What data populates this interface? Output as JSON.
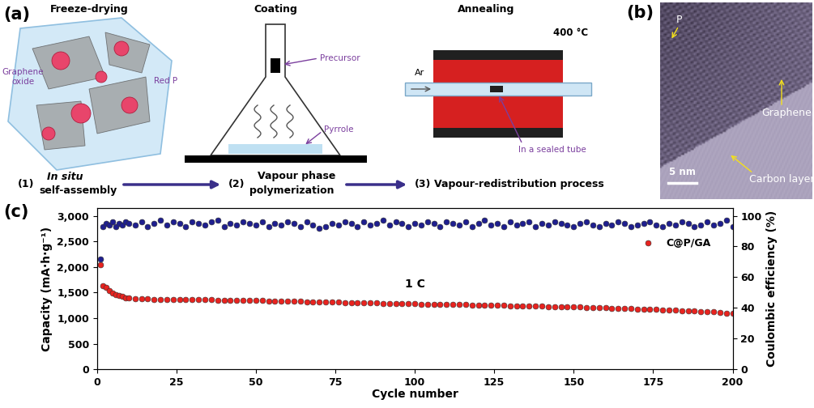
{
  "scheme": {
    "label": "(a)",
    "steps": [
      {
        "title": "Freeze-drying",
        "number": "(1)",
        "caption": [
          "In situ",
          "self-assembly"
        ],
        "callouts": [
          "Graphene\noxide",
          "Red P"
        ]
      },
      {
        "title": "Coating",
        "number": "(2)",
        "caption": [
          "Vapour phase",
          "polymerization"
        ],
        "callouts": [
          "Precursor",
          "Pyrrole"
        ]
      },
      {
        "title": "Annealing",
        "number": "(3)",
        "caption": [
          "Vapour-redistribution process"
        ],
        "callouts": [
          "400 °C",
          "Ar",
          "In a sealed tube"
        ]
      }
    ]
  },
  "tem_image": {
    "label": "(b)",
    "callouts": [
      "P",
      "Graphene",
      "Carbon layer"
    ],
    "scale_bar": "5 nm"
  },
  "chart_data": {
    "type": "scatter",
    "label": "(c)",
    "x_label": "Cycle number",
    "y_label": "Capacity (mA·h·g⁻¹)",
    "y2_label": "Coulombic efficiency (%)",
    "x": [
      1,
      2,
      3,
      4,
      5,
      6,
      7,
      8,
      9,
      10,
      12,
      14,
      16,
      18,
      20,
      22,
      24,
      26,
      28,
      30,
      32,
      34,
      36,
      38,
      40,
      42,
      44,
      46,
      48,
      50,
      52,
      54,
      56,
      58,
      60,
      62,
      64,
      66,
      68,
      70,
      72,
      74,
      76,
      78,
      80,
      82,
      84,
      86,
      88,
      90,
      92,
      94,
      96,
      98,
      100,
      102,
      104,
      106,
      108,
      110,
      112,
      114,
      116,
      118,
      120,
      122,
      124,
      126,
      128,
      130,
      132,
      134,
      136,
      138,
      140,
      142,
      144,
      146,
      148,
      150,
      152,
      154,
      156,
      158,
      160,
      162,
      164,
      166,
      168,
      170,
      172,
      174,
      176,
      178,
      180,
      182,
      184,
      186,
      188,
      190,
      192,
      194,
      196,
      198,
      200
    ],
    "series": [
      {
        "name": "C@P/GA",
        "color": "#e8231f",
        "marker": "o",
        "values": [
          2050,
          1630,
          1600,
          1540,
          1490,
          1460,
          1440,
          1420,
          1400,
          1390,
          1380,
          1375,
          1375,
          1370,
          1370,
          1365,
          1365,
          1365,
          1360,
          1360,
          1360,
          1355,
          1355,
          1350,
          1350,
          1350,
          1345,
          1345,
          1340,
          1340,
          1340,
          1335,
          1335,
          1330,
          1330,
          1325,
          1325,
          1320,
          1320,
          1315,
          1315,
          1310,
          1310,
          1305,
          1305,
          1300,
          1300,
          1295,
          1295,
          1290,
          1290,
          1285,
          1285,
          1280,
          1280,
          1275,
          1275,
          1270,
          1270,
          1265,
          1265,
          1260,
          1260,
          1255,
          1255,
          1250,
          1250,
          1245,
          1245,
          1240,
          1240,
          1235,
          1235,
          1230,
          1230,
          1225,
          1225,
          1220,
          1220,
          1215,
          1215,
          1210,
          1205,
          1200,
          1200,
          1195,
          1190,
          1185,
          1185,
          1180,
          1175,
          1170,
          1165,
          1160,
          1155,
          1150,
          1145,
          1140,
          1135,
          1130,
          1125,
          1120,
          1110,
          1100,
          1090
        ]
      },
      {
        "color": "#1f1f8f",
        "marker": "o",
        "axis": "y2",
        "values": [
          72,
          93,
          95,
          94,
          96,
          93,
          95,
          94,
          96,
          95,
          94,
          96,
          93,
          95,
          97,
          94,
          96,
          95,
          93,
          96,
          95,
          94,
          96,
          97,
          93,
          95,
          94,
          96,
          95,
          94,
          96,
          93,
          95,
          94,
          96,
          95,
          93,
          96,
          94,
          92,
          93,
          95,
          94,
          96,
          95,
          93,
          96,
          94,
          95,
          97,
          94,
          96,
          95,
          93,
          95,
          94,
          96,
          95,
          93,
          96,
          95,
          94,
          96,
          93,
          95,
          97,
          94,
          95,
          93,
          96,
          94,
          95,
          96,
          93,
          95,
          94,
          96,
          95,
          94,
          93,
          95,
          96,
          94,
          93,
          95,
          94,
          96,
          95,
          93,
          94,
          95,
          96,
          94,
          93,
          95,
          94,
          96,
          95,
          93,
          94,
          96,
          94,
          95,
          97,
          93
        ]
      }
    ],
    "xlim": [
      0,
      200
    ],
    "xticks": [
      0,
      25,
      50,
      75,
      100,
      125,
      150,
      175,
      200
    ],
    "ylim": [
      0,
      3150
    ],
    "yticks": [
      0,
      500,
      {
        "value": 1000,
        "label": "1,000"
      },
      {
        "value": 1500,
        "label": "1,500"
      },
      {
        "value": 2000,
        "label": "2,000"
      },
      {
        "value": 2500,
        "label": "2,500"
      },
      {
        "value": 3000,
        "label": "3,000"
      }
    ],
    "y2lim": [
      0,
      105
    ],
    "y2ticks": [
      0,
      20,
      40,
      60,
      80,
      100
    ],
    "legend": "right",
    "grid": false,
    "annotations": [
      {
        "text": "1 C",
        "x": 100,
        "y": 1560
      }
    ]
  }
}
